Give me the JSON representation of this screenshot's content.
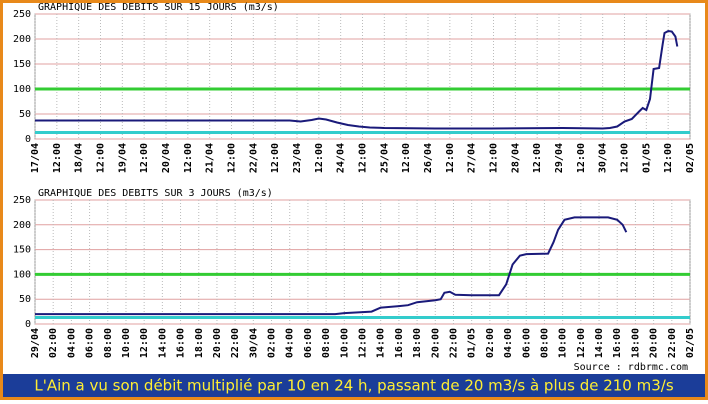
{
  "chart_data": [
    {
      "type": "line",
      "title": "GRAPHIQUE DES DEBITS SUR 15 JOURS (m3/s)",
      "xlim": [
        0,
        360
      ],
      "ylim": [
        0,
        250
      ],
      "yticks": [
        0,
        50,
        100,
        150,
        200,
        250
      ],
      "grid": true,
      "xticks": [
        {
          "value": 0,
          "label": "17/04"
        },
        {
          "value": 12,
          "label": "12:00"
        },
        {
          "value": 24,
          "label": "18/04"
        },
        {
          "value": 36,
          "label": "12:00"
        },
        {
          "value": 48,
          "label": "19/04"
        },
        {
          "value": 60,
          "label": "12:00"
        },
        {
          "value": 72,
          "label": "20/04"
        },
        {
          "value": 84,
          "label": "12:00"
        },
        {
          "value": 96,
          "label": "21/04"
        },
        {
          "value": 108,
          "label": "12:00"
        },
        {
          "value": 120,
          "label": "22/04"
        },
        {
          "value": 132,
          "label": "12:00"
        },
        {
          "value": 144,
          "label": "23/04"
        },
        {
          "value": 156,
          "label": "12:00"
        },
        {
          "value": 168,
          "label": "24/04"
        },
        {
          "value": 180,
          "label": "12:00"
        },
        {
          "value": 192,
          "label": "25/04"
        },
        {
          "value": 204,
          "label": "12:00"
        },
        {
          "value": 216,
          "label": "26/04"
        },
        {
          "value": 228,
          "label": "12:00"
        },
        {
          "value": 240,
          "label": "27/04"
        },
        {
          "value": 252,
          "label": "12:00"
        },
        {
          "value": 264,
          "label": "28/04"
        },
        {
          "value": 276,
          "label": "12:00"
        },
        {
          "value": 288,
          "label": "29/04"
        },
        {
          "value": 300,
          "label": "12:00"
        },
        {
          "value": 312,
          "label": "30/04"
        },
        {
          "value": 324,
          "label": "12:00"
        },
        {
          "value": 336,
          "label": "01/05"
        },
        {
          "value": 348,
          "label": "12:00"
        },
        {
          "value": 360,
          "label": "02/05"
        }
      ],
      "reference_lines": [
        {
          "value": 100,
          "color": "#33cc33"
        },
        {
          "value": 13,
          "color": "#33cccc"
        }
      ],
      "series": [
        {
          "color": "#1a1a7a",
          "x": [
            0,
            140,
            146,
            152,
            156,
            160,
            166,
            172,
            178,
            184,
            192,
            220,
            250,
            290,
            312,
            316,
            320,
            324,
            328,
            332,
            334,
            336,
            338,
            340,
            343,
            345,
            346,
            348,
            350,
            352,
            353
          ],
          "values": [
            37,
            37,
            35,
            38,
            41,
            39,
            33,
            28,
            25,
            23,
            22,
            21,
            21,
            22,
            21,
            22,
            25,
            35,
            40,
            55,
            62,
            58,
            80,
            140,
            142,
            190,
            212,
            216,
            215,
            205,
            185
          ]
        }
      ]
    },
    {
      "type": "line",
      "title": "GRAPHIQUE DES DEBITS SUR 3 JOURS (m3/s)",
      "source": "Source : rdbrmc.com",
      "xlim": [
        0,
        72
      ],
      "ylim": [
        0,
        250
      ],
      "yticks": [
        0,
        50,
        100,
        150,
        200,
        250
      ],
      "grid": true,
      "xticks": [
        {
          "value": 0,
          "label": "29/04"
        },
        {
          "value": 2,
          "label": "02:00"
        },
        {
          "value": 4,
          "label": "04:00"
        },
        {
          "value": 6,
          "label": "06:00"
        },
        {
          "value": 8,
          "label": "08:00"
        },
        {
          "value": 10,
          "label": "10:00"
        },
        {
          "value": 12,
          "label": "12:00"
        },
        {
          "value": 14,
          "label": "14:00"
        },
        {
          "value": 16,
          "label": "16:00"
        },
        {
          "value": 18,
          "label": "18:00"
        },
        {
          "value": 20,
          "label": "20:00"
        },
        {
          "value": 22,
          "label": "22:00"
        },
        {
          "value": 24,
          "label": "30/04"
        },
        {
          "value": 26,
          "label": "02:00"
        },
        {
          "value": 28,
          "label": "04:00"
        },
        {
          "value": 30,
          "label": "06:00"
        },
        {
          "value": 32,
          "label": "08:00"
        },
        {
          "value": 34,
          "label": "10:00"
        },
        {
          "value": 36,
          "label": "12:00"
        },
        {
          "value": 38,
          "label": "14:00"
        },
        {
          "value": 40,
          "label": "16:00"
        },
        {
          "value": 42,
          "label": "18:00"
        },
        {
          "value": 44,
          "label": "20:00"
        },
        {
          "value": 46,
          "label": "22:00"
        },
        {
          "value": 48,
          "label": "01/05"
        },
        {
          "value": 50,
          "label": "02:00"
        },
        {
          "value": 52,
          "label": "04:00"
        },
        {
          "value": 54,
          "label": "06:00"
        },
        {
          "value": 56,
          "label": "08:00"
        },
        {
          "value": 58,
          "label": "10:00"
        },
        {
          "value": 60,
          "label": "12:00"
        },
        {
          "value": 62,
          "label": "14:00"
        },
        {
          "value": 64,
          "label": "16:00"
        },
        {
          "value": 66,
          "label": "18:00"
        },
        {
          "value": 68,
          "label": "20:00"
        },
        {
          "value": 70,
          "label": "22:00"
        },
        {
          "value": 72,
          "label": "02/05"
        }
      ],
      "reference_lines": [
        {
          "value": 100,
          "color": "#33cc33"
        },
        {
          "value": 13,
          "color": "#33cccc"
        }
      ],
      "series": [
        {
          "color": "#1a1a7a",
          "x": [
            0,
            33,
            34,
            37,
            38,
            40,
            41,
            42,
            44,
            44.6,
            45,
            45.6,
            46.2,
            48,
            51,
            51.8,
            52.5,
            53.3,
            54,
            56.4,
            57,
            57.5,
            58.2,
            59.3,
            63,
            64,
            64.6,
            65
          ],
          "values": [
            20,
            20,
            22,
            25,
            33,
            36,
            38,
            44,
            48,
            50,
            63,
            65,
            59,
            58,
            58,
            80,
            120,
            138,
            141,
            142,
            165,
            190,
            210,
            215,
            215,
            210,
            200,
            185
          ]
        }
      ]
    }
  ],
  "caption": "L'Ain a vu son débit multiplié par 10 en 24 h, passant de 20 m3/s à plus de 210 m3/s"
}
